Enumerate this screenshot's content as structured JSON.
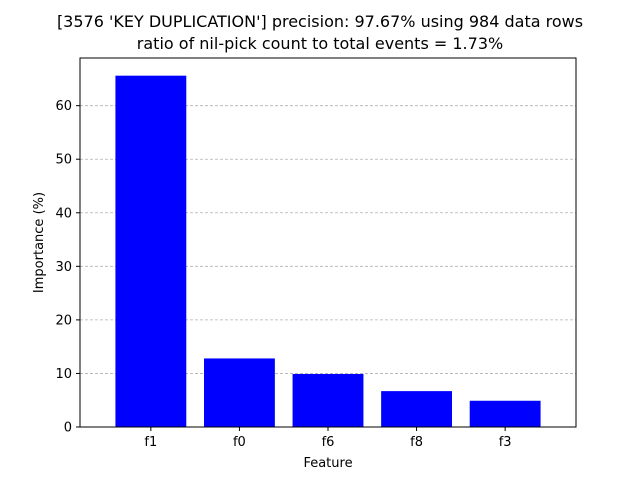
{
  "chart_data": {
    "type": "bar",
    "title_line1": "[3576 'KEY DUPLICATION'] precision: 97.67% using 984 data rows",
    "title_line2": "ratio of nil-pick count to total events = 1.73%",
    "xlabel": "Feature",
    "ylabel": "Importance (%)",
    "categories": [
      "f1",
      "f0",
      "f6",
      "f8",
      "f3"
    ],
    "values": [
      65.6,
      12.8,
      9.9,
      6.7,
      4.9
    ],
    "ylim": [
      0,
      68.9
    ],
    "yticks": [
      0,
      10,
      20,
      30,
      40,
      50,
      60
    ],
    "grid": "y-dashed",
    "bar_color": "#0000ff"
  }
}
